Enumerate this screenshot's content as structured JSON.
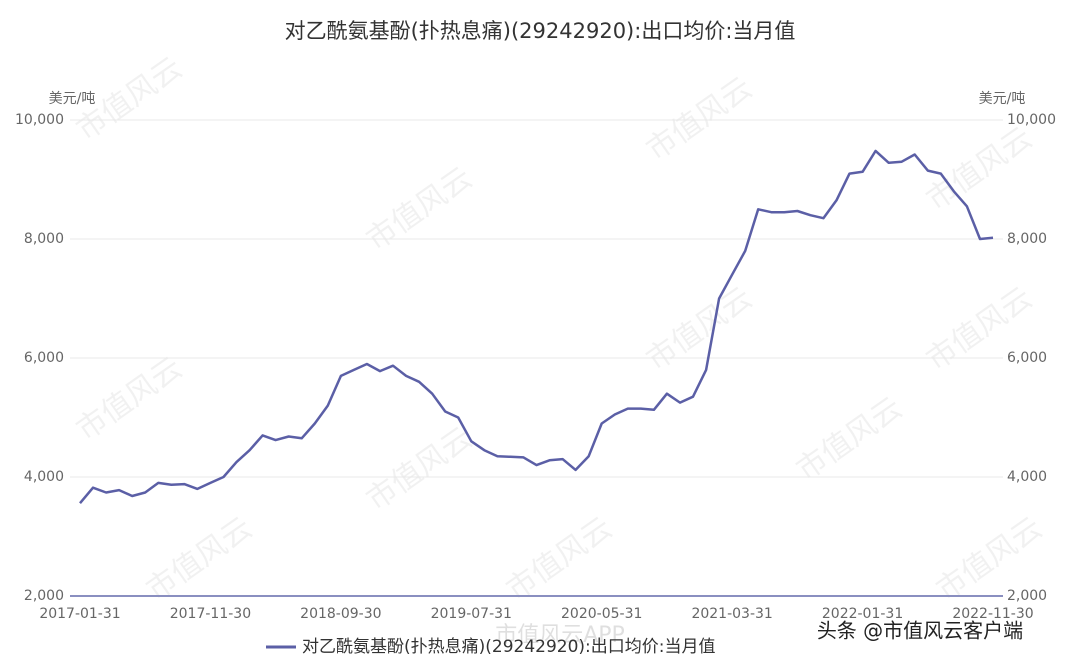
{
  "chart_data": {
    "type": "line",
    "title": "对乙酰氨基酚(扑热息痛)(29242920):出口均价:当月值",
    "y_unit": "美元/吨",
    "y2_unit": "美元/吨",
    "watermark": "市值风云",
    "watermark_app": "市值风云APP",
    "footer": "头条 @市值风云客户端",
    "categories": [
      "2017-01-31",
      null,
      null,
      null,
      null,
      null,
      null,
      null,
      null,
      null,
      "2017-11-30",
      null,
      null,
      null,
      null,
      null,
      null,
      null,
      null,
      null,
      "2018-09-30",
      null,
      null,
      null,
      null,
      null,
      null,
      null,
      null,
      null,
      "2019-07-31",
      null,
      null,
      null,
      null,
      null,
      null,
      null,
      null,
      null,
      "2020-05-31",
      null,
      null,
      null,
      null,
      null,
      null,
      null,
      null,
      null,
      "2021-03-31",
      null,
      null,
      null,
      null,
      null,
      null,
      null,
      null,
      null,
      "2022-01-31",
      null,
      null,
      null,
      null,
      null,
      null,
      null,
      null,
      null,
      "2022-11-30"
    ],
    "series": [
      {
        "name": "对乙酰氨基酚(扑热息痛)(29242920):出口均价:当月值",
        "color": "#5b5fa6",
        "values": [
          3560,
          3820,
          3740,
          3780,
          3680,
          3740,
          3900,
          3870,
          3880,
          3800,
          3900,
          4000,
          4250,
          4450,
          4700,
          4620,
          4680,
          4650,
          4900,
          5200,
          5700,
          5800,
          5900,
          5780,
          5870,
          5700,
          5600,
          5400,
          5100,
          5000,
          4600,
          4450,
          4350,
          4340,
          4330,
          4200,
          4280,
          4300,
          4120,
          4350,
          4900,
          5050,
          5150,
          5150,
          5130,
          5400,
          5250,
          5350,
          5800,
          7000,
          7400,
          7800,
          8500,
          8450,
          8450,
          8470,
          8400,
          8350,
          8650,
          9100,
          9130,
          9480,
          9280,
          9300,
          9420,
          9150,
          9100,
          8800,
          8550,
          8000,
          8020
        ]
      }
    ],
    "ylim": [
      2000,
      10000
    ],
    "yticks": [
      {
        "value": 2000,
        "label": "2,000"
      },
      {
        "value": 4000,
        "label": "4,000"
      },
      {
        "value": 6000,
        "label": "6,000"
      },
      {
        "value": 8000,
        "label": "8,000"
      },
      {
        "value": 10000,
        "label": "10,000"
      }
    ],
    "y2lim": [
      2000,
      10000
    ],
    "y2ticks": [
      {
        "value": 2000,
        "label": "2,000"
      },
      {
        "value": 4000,
        "label": "4,000"
      },
      {
        "value": 6000,
        "label": "6,000"
      },
      {
        "value": 8000,
        "label": "8,000"
      },
      {
        "value": 10000,
        "label": "10,000"
      }
    ],
    "grid": true
  }
}
